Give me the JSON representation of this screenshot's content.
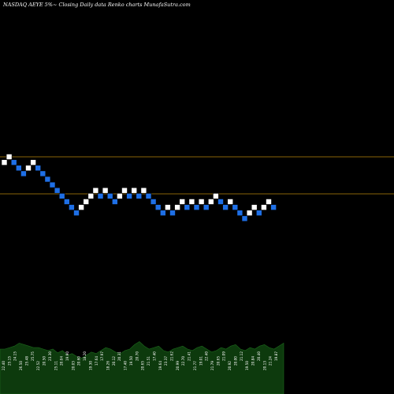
{
  "chart_data": {
    "type": "renko",
    "title": "NASDAQ AEYE 5%~ Closing Daily data Renko charts MunafaSutra.com",
    "colors": {
      "background": "#000000",
      "up_brick": "#ffffff",
      "down_brick": "#1e6fe6",
      "reference_line": "#b8860b",
      "volume_fill": "#0d3a0d",
      "volume_stroke": "#1d6b1d"
    },
    "reference_lines": [
      25.4,
      22.1
    ],
    "bricks": [
      {
        "x": 1,
        "y": 24.9,
        "dir": "up"
      },
      {
        "x": 2,
        "y": 25.4,
        "dir": "up"
      },
      {
        "x": 3,
        "y": 24.9,
        "dir": "down"
      },
      {
        "x": 4,
        "y": 24.4,
        "dir": "down"
      },
      {
        "x": 5,
        "y": 23.9,
        "dir": "down"
      },
      {
        "x": 6,
        "y": 24.4,
        "dir": "up"
      },
      {
        "x": 7,
        "y": 24.9,
        "dir": "up"
      },
      {
        "x": 8,
        "y": 24.4,
        "dir": "down"
      },
      {
        "x": 9,
        "y": 23.9,
        "dir": "down"
      },
      {
        "x": 10,
        "y": 23.4,
        "dir": "down"
      },
      {
        "x": 11,
        "y": 22.9,
        "dir": "down"
      },
      {
        "x": 12,
        "y": 22.4,
        "dir": "down"
      },
      {
        "x": 13,
        "y": 21.9,
        "dir": "down"
      },
      {
        "x": 14,
        "y": 21.4,
        "dir": "down"
      },
      {
        "x": 15,
        "y": 20.9,
        "dir": "down"
      },
      {
        "x": 16,
        "y": 20.4,
        "dir": "down"
      },
      {
        "x": 17,
        "y": 20.9,
        "dir": "up"
      },
      {
        "x": 18,
        "y": 21.4,
        "dir": "up"
      },
      {
        "x": 19,
        "y": 21.9,
        "dir": "up"
      },
      {
        "x": 20,
        "y": 22.4,
        "dir": "up"
      },
      {
        "x": 21,
        "y": 21.9,
        "dir": "down"
      },
      {
        "x": 22,
        "y": 22.4,
        "dir": "up"
      },
      {
        "x": 23,
        "y": 21.9,
        "dir": "down"
      },
      {
        "x": 24,
        "y": 21.4,
        "dir": "down"
      },
      {
        "x": 25,
        "y": 21.9,
        "dir": "up"
      },
      {
        "x": 26,
        "y": 22.4,
        "dir": "up"
      },
      {
        "x": 27,
        "y": 21.9,
        "dir": "down"
      },
      {
        "x": 28,
        "y": 22.4,
        "dir": "up"
      },
      {
        "x": 29,
        "y": 21.9,
        "dir": "down"
      },
      {
        "x": 30,
        "y": 22.4,
        "dir": "up"
      },
      {
        "x": 31,
        "y": 21.9,
        "dir": "down"
      },
      {
        "x": 32,
        "y": 21.4,
        "dir": "down"
      },
      {
        "x": 33,
        "y": 20.9,
        "dir": "down"
      },
      {
        "x": 34,
        "y": 20.4,
        "dir": "down"
      },
      {
        "x": 35,
        "y": 20.9,
        "dir": "up"
      },
      {
        "x": 36,
        "y": 20.4,
        "dir": "down"
      },
      {
        "x": 37,
        "y": 20.9,
        "dir": "up"
      },
      {
        "x": 38,
        "y": 21.4,
        "dir": "up"
      },
      {
        "x": 39,
        "y": 20.9,
        "dir": "down"
      },
      {
        "x": 40,
        "y": 21.4,
        "dir": "up"
      },
      {
        "x": 41,
        "y": 20.9,
        "dir": "down"
      },
      {
        "x": 42,
        "y": 21.4,
        "dir": "up"
      },
      {
        "x": 43,
        "y": 20.9,
        "dir": "down"
      },
      {
        "x": 44,
        "y": 21.4,
        "dir": "up"
      },
      {
        "x": 45,
        "y": 21.9,
        "dir": "up"
      },
      {
        "x": 46,
        "y": 21.4,
        "dir": "down"
      },
      {
        "x": 47,
        "y": 20.9,
        "dir": "down"
      },
      {
        "x": 48,
        "y": 21.4,
        "dir": "up"
      },
      {
        "x": 49,
        "y": 20.9,
        "dir": "down"
      },
      {
        "x": 50,
        "y": 20.4,
        "dir": "down"
      },
      {
        "x": 51,
        "y": 19.9,
        "dir": "down"
      },
      {
        "x": 52,
        "y": 20.4,
        "dir": "up"
      },
      {
        "x": 53,
        "y": 20.9,
        "dir": "up"
      },
      {
        "x": 54,
        "y": 20.4,
        "dir": "down"
      },
      {
        "x": 55,
        "y": 20.9,
        "dir": "up"
      },
      {
        "x": 56,
        "y": 21.4,
        "dir": "up"
      },
      {
        "x": 57,
        "y": 20.9,
        "dir": "down"
      }
    ],
    "volume_labels": [
      "22.40",
      "25.15",
      "24.15",
      "26.50",
      "25.48",
      "25.75",
      "22.52",
      "20.50",
      "23.30",
      "25.11",
      "20.04",
      "19.90",
      "20.03",
      "20.60",
      "18.20",
      "19.30",
      "17.64",
      "17.97",
      "18.26",
      "20.12",
      "20.31",
      "17.40",
      "19.50",
      "20.70",
      "20.65",
      "21.51",
      "17.40",
      "19.64",
      "23.37",
      "21.62",
      "20.99",
      "22.70",
      "21.41",
      "21.77",
      "19.01",
      "22.40",
      "21.79",
      "20.65",
      "21.09",
      "20.92",
      "20.00",
      "21.12",
      "19.50",
      "20.84",
      "20.40",
      "20.13",
      "21.24",
      "19.87"
    ],
    "volume_values": [
      60,
      60,
      62,
      64,
      68,
      66,
      64,
      62,
      62,
      60,
      58,
      60,
      55,
      58,
      52,
      54,
      50,
      48,
      52,
      56,
      54,
      58,
      62,
      60,
      56,
      54,
      58,
      60,
      66,
      70,
      64,
      60,
      62,
      64,
      58,
      56,
      60,
      62,
      64,
      60,
      58,
      62,
      64,
      60,
      56,
      58,
      62,
      60,
      64,
      66,
      60,
      58,
      62,
      60,
      64,
      66,
      62,
      60,
      64,
      68
    ]
  }
}
